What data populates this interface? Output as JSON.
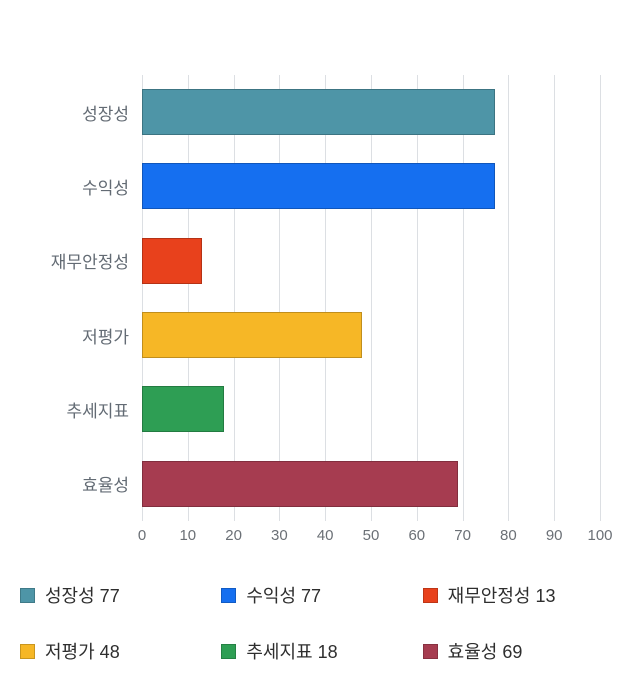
{
  "chart_data": {
    "type": "bar",
    "orientation": "horizontal",
    "title": "",
    "xlabel": "",
    "ylabel": "",
    "categories": [
      "성장성",
      "수익성",
      "재무안정성",
      "저평가",
      "추세지표",
      "효율성"
    ],
    "values": [
      77,
      77,
      13,
      48,
      18,
      69
    ],
    "colors": [
      "#4e95a7",
      "#156ff0",
      "#e8411c",
      "#f6b726",
      "#2e9e54",
      "#a63c50"
    ],
    "xlim": [
      0,
      100
    ],
    "x_ticks": [
      0,
      10,
      20,
      30,
      40,
      50,
      60,
      70,
      80,
      90,
      100
    ],
    "grid": true,
    "legend_position": "bottom",
    "legend": [
      {
        "label": "성장성 77",
        "color": "#4e95a7"
      },
      {
        "label": "수익성 77",
        "color": "#156ff0"
      },
      {
        "label": "재무안정성 13",
        "color": "#e8411c"
      },
      {
        "label": "저평가 48",
        "color": "#f6b726"
      },
      {
        "label": "추세지표 18",
        "color": "#2e9e54"
      },
      {
        "label": "효율성 69",
        "color": "#a63c50"
      }
    ]
  }
}
